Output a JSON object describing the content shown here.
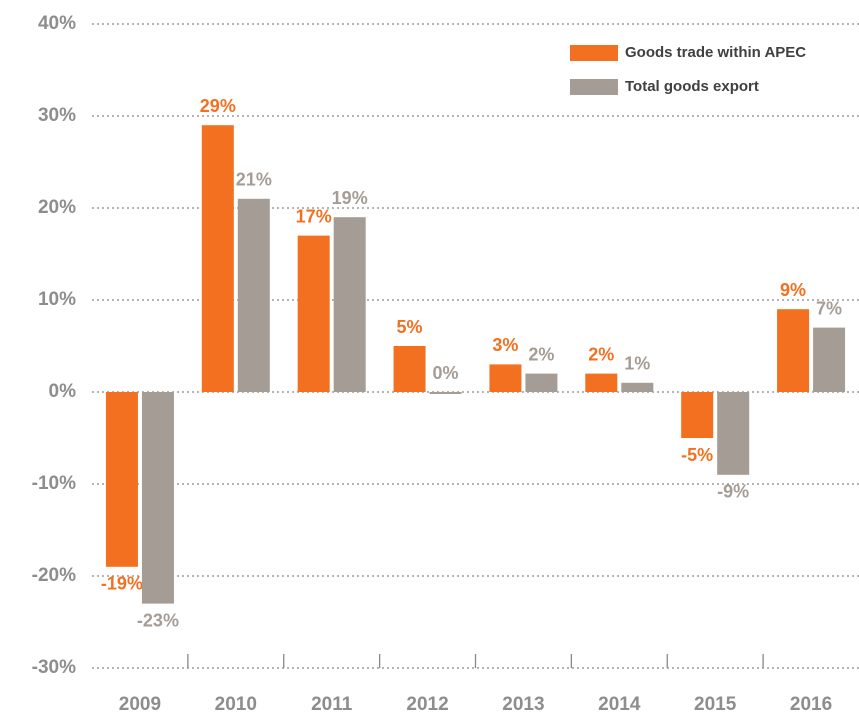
{
  "chart_data": {
    "type": "bar",
    "categories": [
      "2009",
      "2010",
      "2011",
      "2012",
      "2013",
      "2014",
      "2015",
      "2016"
    ],
    "series": [
      {
        "name": "Goods trade within APEC",
        "color": "#f37021",
        "values": [
          -19,
          29,
          17,
          5,
          3,
          2,
          -5,
          9
        ],
        "value_labels": [
          "-19%",
          "29%",
          "17%",
          "5%",
          "3%",
          "2%",
          "-5%",
          "9%"
        ]
      },
      {
        "name": "Total goods export",
        "color": "#a59d95",
        "values": [
          -23,
          21,
          19,
          0,
          2,
          1,
          -9,
          7
        ],
        "value_labels": [
          "-23%",
          "21%",
          "19%",
          "0%",
          "2%",
          "1%",
          "-9%",
          "7%"
        ]
      }
    ],
    "ylim": [
      -30,
      40
    ],
    "yticks": [
      {
        "value": -30,
        "label": "-30%"
      },
      {
        "value": -20,
        "label": "-20%"
      },
      {
        "value": -10,
        "label": "-10%"
      },
      {
        "value": 0,
        "label": "0%"
      },
      {
        "value": 10,
        "label": "10%"
      },
      {
        "value": 20,
        "label": "20%"
      },
      {
        "value": 30,
        "label": "30%"
      },
      {
        "value": 40,
        "label": "40%"
      }
    ],
    "grid": true,
    "legend": "top-right"
  }
}
